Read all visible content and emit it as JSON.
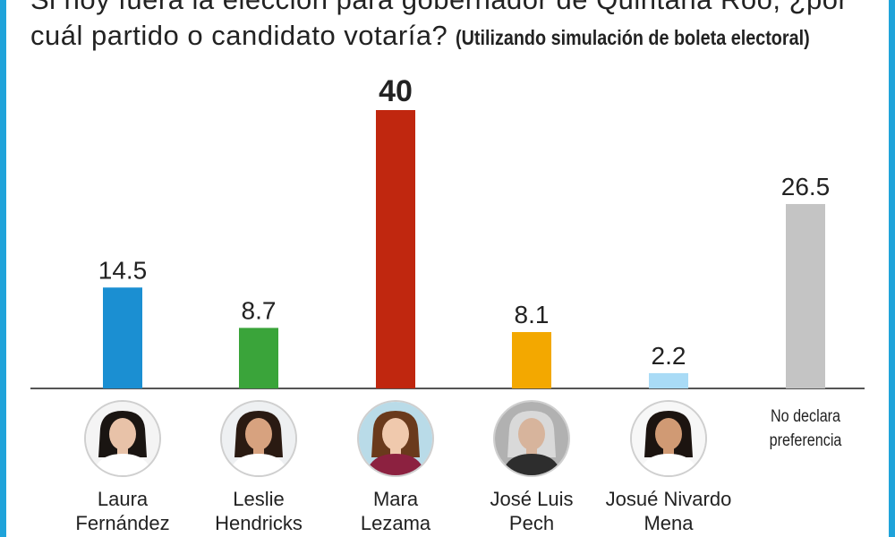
{
  "title": {
    "main": "Si hoy fuera la elección para gobernador de Quintana Roo, ¿por cuál partido o candidato votaría?",
    "sub": "(Utilizando simulación de boleta electoral)"
  },
  "chart_data": {
    "type": "bar",
    "categories": [
      "Laura Fernández",
      "Leslie Hendricks",
      "Mara Lezama",
      "José Luis Pech",
      "Josué Nivardo Mena",
      "No declara preferencia"
    ],
    "category_lines": [
      [
        "Laura",
        "Fernández"
      ],
      [
        "Leslie",
        "Hendricks"
      ],
      [
        "Mara",
        "Lezama"
      ],
      [
        "José Luis",
        "Pech"
      ],
      [
        "Josué Nivardo",
        "Mena"
      ],
      [
        "No declara",
        "preferencia"
      ]
    ],
    "values": [
      14.5,
      8.7,
      40,
      8.1,
      2.2,
      26.5
    ],
    "value_labels": [
      "14.5",
      "8.7",
      "40",
      "8.1",
      "2.2",
      "26.5"
    ],
    "colors": [
      "#1b8fd2",
      "#3aa43a",
      "#c0270f",
      "#f3a800",
      "#a9dbf6",
      "#c4c4c4"
    ],
    "highlight_index": 2,
    "xlabel": "",
    "ylabel": "",
    "ylim": [
      0,
      40
    ],
    "grid": false
  },
  "avatars": [
    {
      "icon": "portrait-icon",
      "hair": "#1a1512",
      "skin": "#e8c2a8",
      "shirt": "#ffffff",
      "bg": "#f4f4f4"
    },
    {
      "icon": "portrait-icon",
      "hair": "#2a1a12",
      "skin": "#d7a27f",
      "shirt": "#ffffff",
      "bg": "#eef0f2"
    },
    {
      "icon": "portrait-icon",
      "hair": "#6a3a1c",
      "skin": "#f0c9ad",
      "shirt": "#8c2140",
      "bg": "#b9dbe8"
    },
    {
      "icon": "portrait-icon",
      "hair": "#d9d9d9",
      "skin": "#d7b49c",
      "shirt": "#2d2d2d",
      "bg": "#b1b1b1"
    },
    {
      "icon": "portrait-icon",
      "hair": "#1c1410",
      "skin": "#d09a74",
      "shirt": "#ffffff",
      "bg": "#f7f7f7"
    }
  ]
}
